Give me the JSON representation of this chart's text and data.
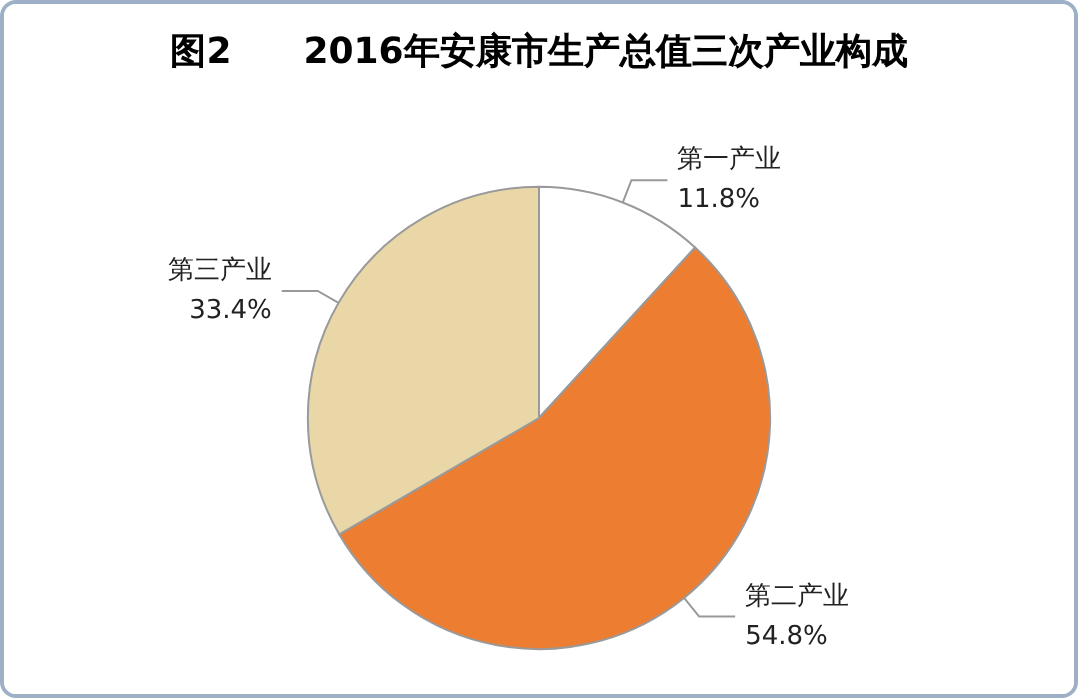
{
  "chart_data": {
    "type": "pie",
    "title": "图2　　2016年安康市生产总值三次产业构成",
    "categories": [
      "第一产业",
      "第二产业",
      "第三产业"
    ],
    "values": [
      11.8,
      54.8,
      33.4
    ],
    "colors": [
      "#ffffff",
      "#ed7d31",
      "#ead7a8"
    ],
    "value_labels": [
      "11.8%",
      "54.8%",
      "33.4%"
    ],
    "legend": false
  }
}
